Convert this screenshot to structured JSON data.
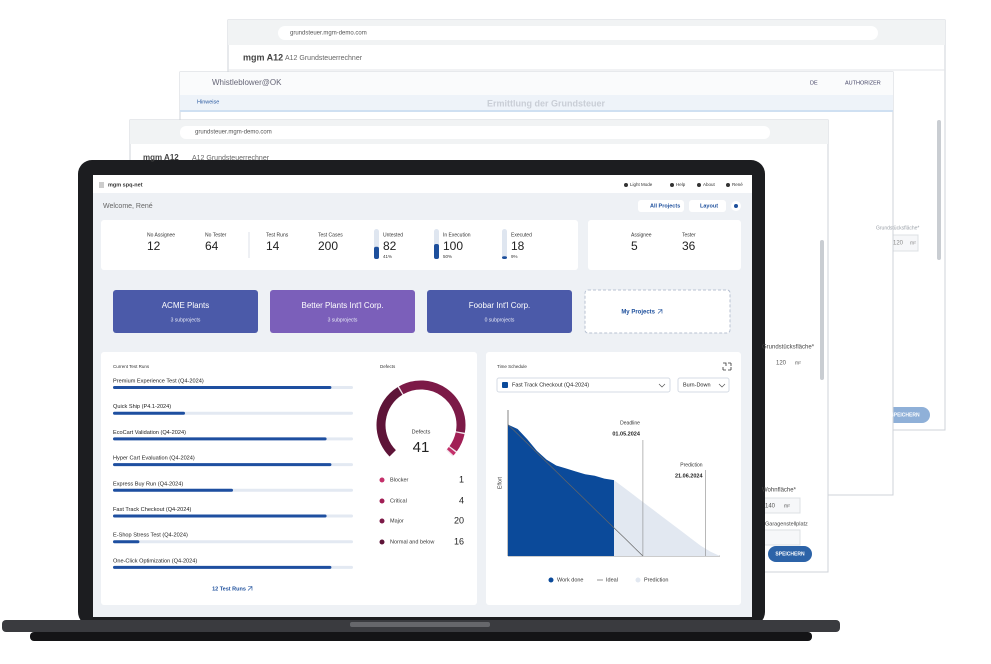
{
  "background_windows": [
    {
      "url": "grundsteuer.mgm-demo.com",
      "brand": "mgm A12",
      "app": "A12 Grundsteuerrechner",
      "section": "Ermittlung der Grundsteuer",
      "field": "Grundstücksfläche*",
      "field_value": "120",
      "unit": "m²",
      "button": "SPEICHERN"
    },
    {
      "brand": "Whistleblower@OK",
      "tab": "Hinweise",
      "language": "DE",
      "user": "AUTHORIZER",
      "field": "Grundstücksfläche*",
      "field_value": "120",
      "unit": "m²"
    },
    {
      "url": "grundsteuer.mgm-demo.com",
      "brand": "mgm A12",
      "app": "A12 Grundsteuerrechner",
      "field": "Wohnfläche*",
      "field_value": "140",
      "unit": "m²",
      "field2": "Garagenstellplatz",
      "button": "SPEICHERN"
    }
  ],
  "header": {
    "brand": "mgm spq-net",
    "links": [
      "Light Mode",
      "Help",
      "About",
      "René"
    ]
  },
  "welcome": "Welcome, René",
  "actions": [
    "All Projects",
    "Layout"
  ],
  "stats": [
    {
      "label": "No Assignee",
      "value": 12
    },
    {
      "label": "No Tester",
      "value": 64
    },
    {
      "label": "Test Runs",
      "value": 14
    },
    {
      "label": "Test Cases",
      "value": 200
    },
    {
      "label": "Untested",
      "value": 82,
      "percent": 41,
      "percent_label": "41%"
    },
    {
      "label": "In Execution",
      "value": 100,
      "percent": 50,
      "percent_label": "50%"
    },
    {
      "label": "Executed",
      "value": 18,
      "percent": 9,
      "percent_label": "9%"
    }
  ],
  "people": [
    {
      "label": "Assignee",
      "value": 5
    },
    {
      "label": "Tester",
      "value": 36
    }
  ],
  "projects": [
    {
      "name": "ACME Plants",
      "subprojects": "3 subprojects",
      "color": "#4b5aa9"
    },
    {
      "name": "Better Plants Int'l Corp.",
      "subprojects": "3 subprojects",
      "color": "#7b5fba"
    },
    {
      "name": "Foobar Int'l Corp.",
      "subprojects": "0 subprojects",
      "color": "#4b5aa9"
    }
  ],
  "my_projects": "My Projects",
  "test_runs": {
    "title": "Current Test Runs",
    "runs": [
      {
        "name": "Premium Experience Test (Q4-2024)",
        "progress": 91
      },
      {
        "name": "Quick Ship (P4.1-2024)",
        "progress": 30
      },
      {
        "name": "EcoCart Validation (Q4-2024)",
        "progress": 89
      },
      {
        "name": "Hyper Cart Evaluation (Q4-2024)",
        "progress": 91
      },
      {
        "name": "Express Buy Run (Q4-2024)",
        "progress": 50
      },
      {
        "name": "Fast Track Checkout (Q4-2024)",
        "progress": 89
      },
      {
        "name": "E-Shop Stress Test (Q4-2024)",
        "progress": 11
      },
      {
        "name": "One-Click Optimization (Q4-2024)",
        "progress": 91
      }
    ],
    "link": "12 Test Runs"
  },
  "defects": {
    "title": "Defects",
    "label": "Defects",
    "total": 41,
    "items": [
      {
        "name": "Blocker",
        "count": 1,
        "color": "#c4306a"
      },
      {
        "name": "Critical",
        "count": 4,
        "color": "#a11f55"
      },
      {
        "name": "Major",
        "count": 20,
        "color": "#7c1a47"
      },
      {
        "name": "Normal and below",
        "count": 16,
        "color": "#5e1438"
      }
    ]
  },
  "schedule": {
    "title": "Time Schedule",
    "project": "Fast Track Checkout (Q4-2024)",
    "mode": "Burn-Down"
  },
  "chart_data": {
    "type": "burndown",
    "y_label": "Effort",
    "x": [
      0,
      1,
      2,
      3,
      4,
      5,
      6,
      7,
      8,
      9,
      10,
      11,
      12,
      13,
      14,
      15,
      16,
      17,
      18,
      19,
      20,
      21,
      22
    ],
    "xlim": [
      0,
      22
    ],
    "ylim": [
      0,
      100
    ],
    "series": [
      {
        "name": "Work done",
        "kind": "area",
        "color": "#0b4a9a",
        "values": [
          90,
          87,
          80,
          72,
          66,
          62,
          60,
          58,
          56,
          55,
          53,
          52,
          null,
          null,
          null,
          null,
          null,
          null,
          null,
          null,
          null,
          null,
          null
        ]
      },
      {
        "name": "Ideal",
        "kind": "line",
        "color": "#666666",
        "values": [
          90,
          83.6,
          77.1,
          70.7,
          64.3,
          57.9,
          51.4,
          45,
          38.6,
          32.1,
          25.7,
          19.3,
          12.9,
          6.4,
          0,
          null,
          null,
          null,
          null,
          null,
          null,
          null,
          null
        ]
      },
      {
        "name": "Prediction",
        "kind": "area",
        "color": "#e2e8f1",
        "values": [
          null,
          null,
          null,
          null,
          null,
          null,
          null,
          null,
          null,
          null,
          null,
          52,
          47,
          42,
          37,
          32,
          27,
          22,
          17,
          12,
          7,
          3,
          0
        ]
      }
    ],
    "markers": [
      {
        "label": "Deadline",
        "date": "01.05.2024",
        "x": 14
      },
      {
        "label": "Prediction",
        "date": "21.06.2024",
        "x": 20.5
      }
    ]
  }
}
